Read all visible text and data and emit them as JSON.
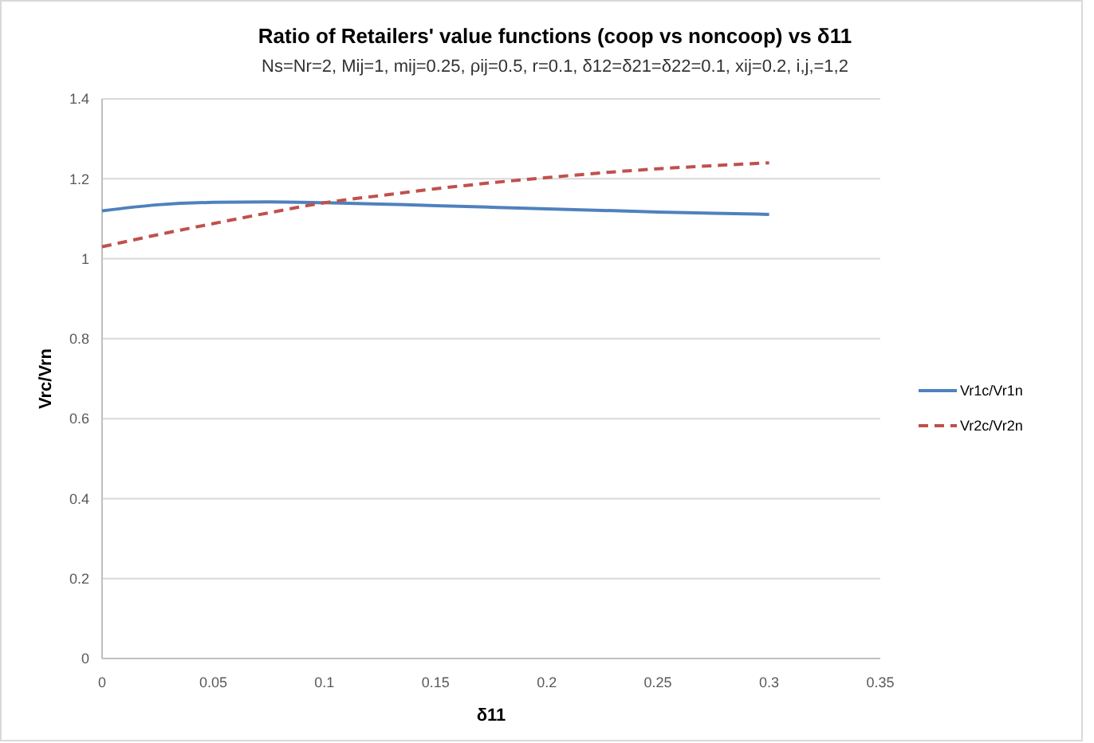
{
  "chart_data": {
    "type": "line",
    "title": "Ratio of Retailers' value functions (coop vs noncoop) vs δ11",
    "subtitle": "Ns=Nr=2, Mij=1, mij=0.25, ρij=0.5, r=0.1, δ12=δ21=δ22=0.1,  xij=0.2,  i,j,=1,2",
    "xlabel": "δ11",
    "ylabel": "Vrc/Vrn",
    "x": [
      0,
      0.025,
      0.05,
      0.075,
      0.1,
      0.125,
      0.15,
      0.175,
      0.2,
      0.225,
      0.25,
      0.275,
      0.3
    ],
    "series": [
      {
        "name": "Vr1c/Vr1n",
        "color": "#4f81bd",
        "line_style": "solid",
        "values": [
          1.12,
          1.135,
          1.141,
          1.142,
          1.14,
          1.137,
          1.133,
          1.129,
          1.125,
          1.121,
          1.117,
          1.114,
          1.111
        ]
      },
      {
        "name": "Vr2c/Vr2n",
        "color": "#c0504d",
        "line_style": "dashed",
        "values": [
          1.03,
          1.06,
          1.088,
          1.115,
          1.14,
          1.158,
          1.175,
          1.19,
          1.203,
          1.215,
          1.225,
          1.233,
          1.24
        ]
      }
    ],
    "xlim": [
      0,
      0.35
    ],
    "xticks": [
      0,
      0.05,
      0.1,
      0.15,
      0.2,
      0.25,
      0.3,
      0.35
    ],
    "ylim": [
      0,
      1.4
    ],
    "yticks": [
      0,
      0.2,
      0.4,
      0.6,
      0.8,
      1,
      1.2,
      1.4
    ],
    "grid": "y",
    "legend": "right",
    "marker": "none"
  }
}
